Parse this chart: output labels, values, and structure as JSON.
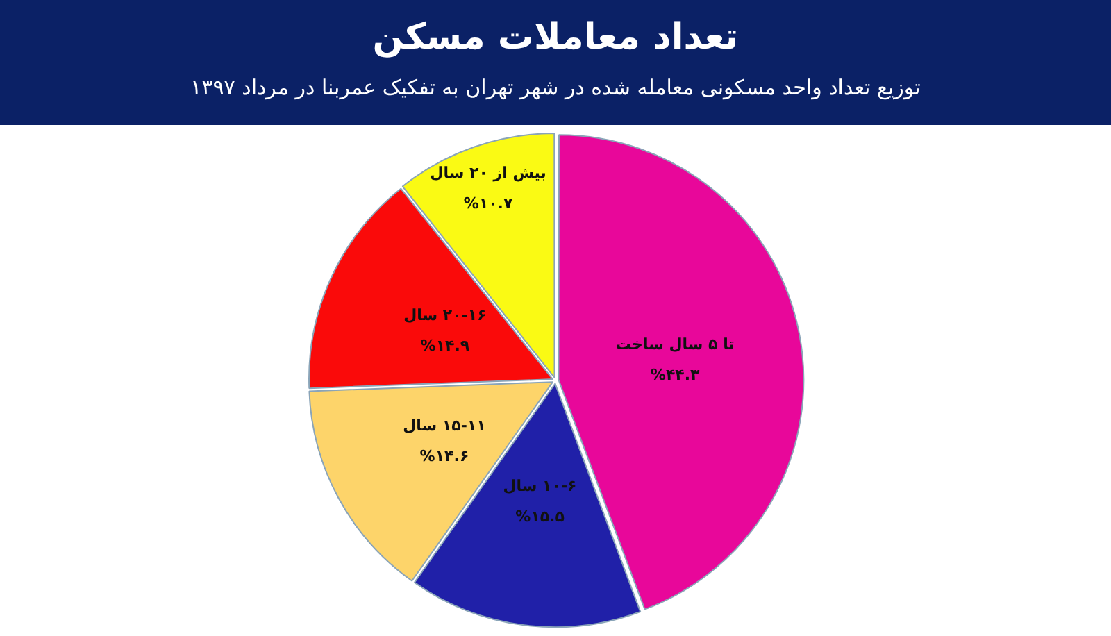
{
  "chart_data": {
    "type": "pie",
    "title": "تعداد معاملات مسکن",
    "subtitle": "توزیع تعداد واحد مسکونی معامله شده در شهر تهران به تفکیک عمربنا در مرداد ۱۳۹۷",
    "categories": [
      "تا ۵ سال ساخت",
      "۱۰-۶ سال",
      "۱۵-۱۱ سال",
      "۲۰-۱۶ سال",
      "بیش از ۲۰ سال"
    ],
    "values": [
      44.3,
      15.5,
      14.6,
      14.9,
      10.7
    ],
    "value_labels": [
      "%۴۴.۳",
      "%۱۵.۵",
      "%۱۴.۶",
      "%۱۴.۹",
      "%۱۰.۷"
    ],
    "colors": [
      "#e8079a",
      "#2020a8",
      "#fdd46a",
      "#fa0a0a",
      "#fafa14"
    ],
    "legend": false
  }
}
